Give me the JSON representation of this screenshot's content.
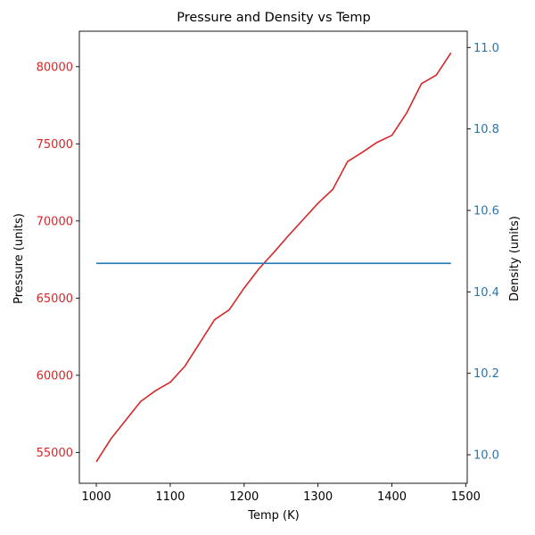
{
  "chart_data": {
    "type": "line",
    "title": "Pressure and Density vs Temp",
    "xlabel": "Temp (K)",
    "ylabel_left": "Pressure (units)",
    "ylabel_right": "Density (units)",
    "xlim": [
      977,
      1502
    ],
    "ylim_left": [
      53000,
      82300
    ],
    "ylim_right": [
      9.93,
      11.04
    ],
    "x_ticks": [
      1000,
      1100,
      1200,
      1300,
      1400,
      1500
    ],
    "y_ticks_left": [
      55000,
      60000,
      65000,
      70000,
      75000,
      80000
    ],
    "y_ticks_right": [
      10.0,
      10.2,
      10.4,
      10.6,
      10.8,
      11.0
    ],
    "y_ticks_right_labels": [
      "10.0",
      "10.2",
      "10.4",
      "10.6",
      "10.8",
      "11.0"
    ],
    "grid": false,
    "colors": {
      "pressure": "#d62728",
      "density": "#1f77b4"
    },
    "x": [
      1000,
      1020,
      1040,
      1060,
      1080,
      1100,
      1120,
      1140,
      1160,
      1180,
      1200,
      1220,
      1240,
      1260,
      1280,
      1300,
      1320,
      1340,
      1360,
      1380,
      1400,
      1420,
      1440,
      1460,
      1480
    ],
    "series": [
      {
        "name": "Pressure",
        "axis": "left",
        "values": [
          54400,
          55900,
          57100,
          58300,
          59000,
          59550,
          60600,
          62100,
          63600,
          64250,
          65650,
          66900,
          67950,
          69050,
          70100,
          71150,
          72050,
          73850,
          74450,
          75100,
          75550,
          77000,
          78900,
          79450,
          80900
        ]
      },
      {
        "name": "Density",
        "axis": "right",
        "values": [
          10.47,
          10.47,
          10.47,
          10.47,
          10.47,
          10.47,
          10.47,
          10.47,
          10.47,
          10.47,
          10.47,
          10.47,
          10.47,
          10.47,
          10.47,
          10.47,
          10.47,
          10.47,
          10.47,
          10.47,
          10.47,
          10.47,
          10.47,
          10.47,
          10.47
        ]
      }
    ]
  }
}
